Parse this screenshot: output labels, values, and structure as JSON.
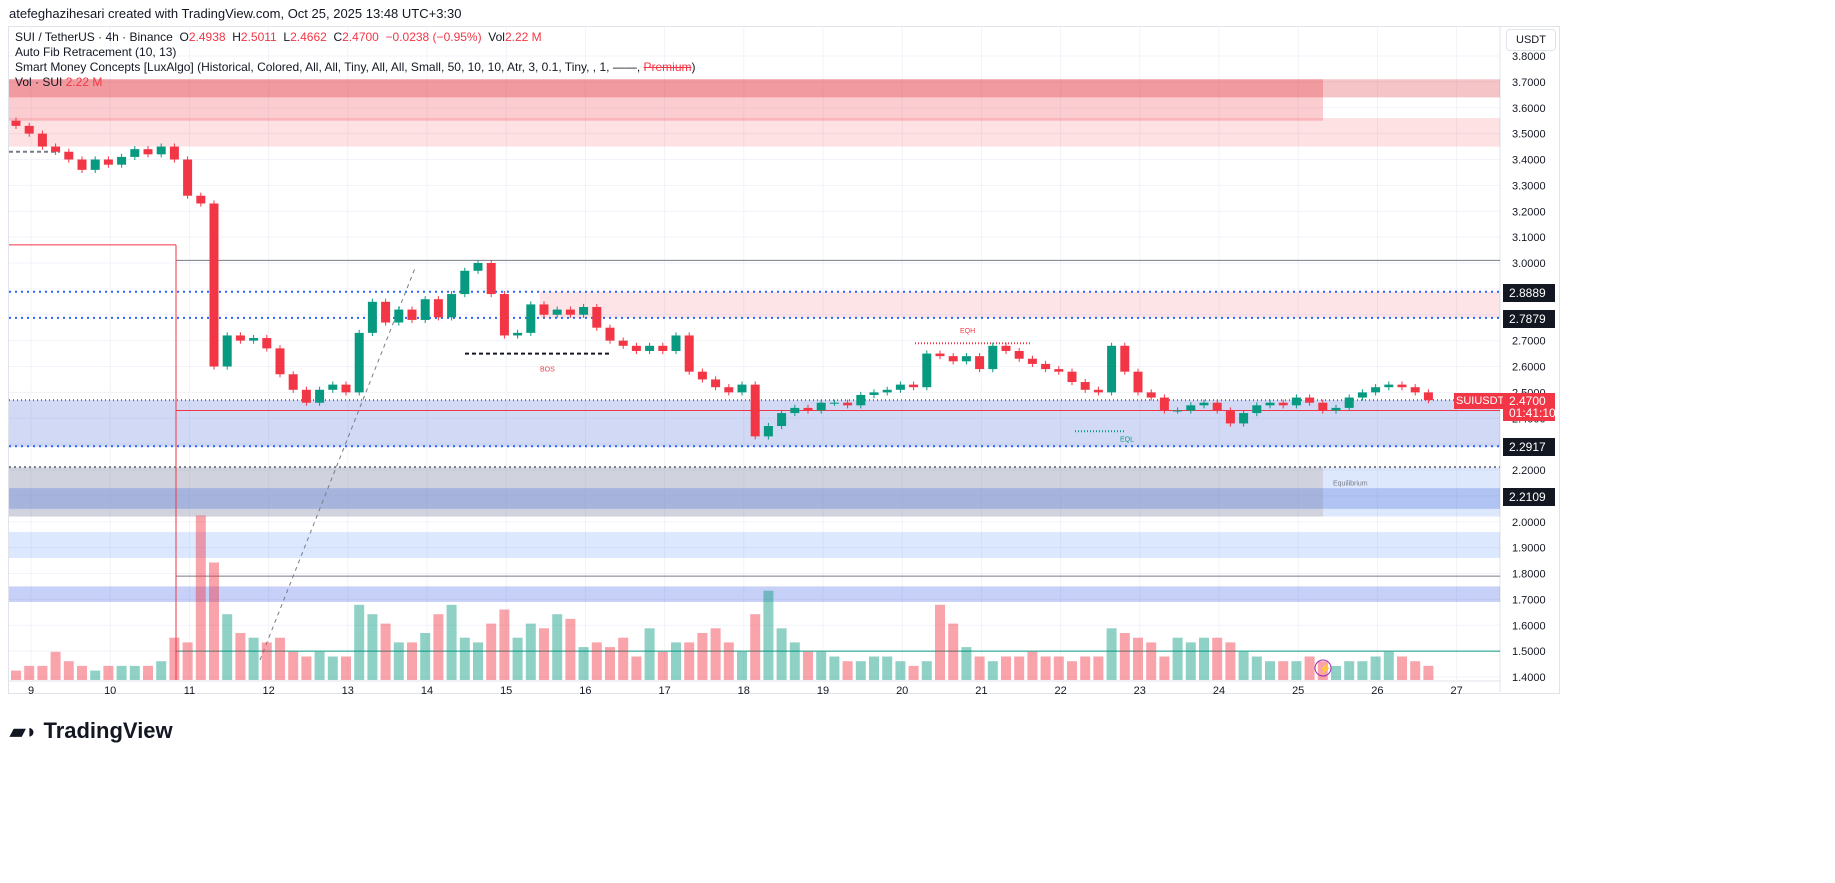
{
  "credit": "atefeghazihesari created with TradingView.com, Oct 25, 2025 13:48 UTC+3:30",
  "legend": {
    "symbol": "SUI / TetherUS · 4h · Binance",
    "o_label": "O",
    "o": "2.4938",
    "h_label": "H",
    "h": "2.5011",
    "l_label": "L",
    "l": "2.4662",
    "c_label": "C",
    "c": "2.4700",
    "change": "−0.0238 (−0.95%)",
    "vol_label": "Vol",
    "vol": "2.22 M",
    "fib": "Auto Fib Retracement (10, 13)",
    "smc": "Smart Money Concepts [LuxAlgo] (Historical, Colored, All, All, Tiny, All, All, Small, 50, 10, 10, Atr, 3, 0.1, Tiny, , 1, ——,",
    "smc_premium": "Premium",
    "smc_end": ")",
    "vol_line": "Vol · SUI",
    "vol_line_val": "2.22 M"
  },
  "currency_button": "USDT",
  "price_tags": {
    "p1": "2.8889",
    "p2": "2.7879",
    "p3": "2.2917",
    "p4": "2.2109",
    "symbol": "SUIUSDT",
    "last": "2.4700",
    "countdown": "01:41:10"
  },
  "annotations": {
    "eqh": "EQH",
    "bos": "BOS",
    "eql": "EQL",
    "equilibrium": "Equilibrium"
  },
  "logo": "TradingView",
  "colors": {
    "up": "#089981",
    "down": "#f23645"
  },
  "chart_data": {
    "type": "candlestick",
    "title": "SUI / TetherUS · 4h · Binance",
    "ylim": [
      1.4,
      3.8
    ],
    "yticks": [
      "3.8000",
      "3.7000",
      "3.6000",
      "3.5000",
      "3.4000",
      "3.3000",
      "3.2000",
      "3.1000",
      "3.0000",
      "2.9000",
      "2.8000",
      "2.7000",
      "2.6000",
      "2.5000",
      "2.4000",
      "2.3000",
      "2.2000",
      "2.1000",
      "2.0000",
      "1.9000",
      "1.8000",
      "1.7000",
      "1.6000",
      "1.5000",
      "1.4000"
    ],
    "xticks": [
      "9",
      "10",
      "11",
      "12",
      "13",
      "14",
      "15",
      "16",
      "17",
      "18",
      "19",
      "20",
      "21",
      "22",
      "23",
      "24",
      "25",
      "26",
      "27"
    ],
    "first_open": 3.55,
    "closes": [
      3.53,
      3.5,
      3.45,
      3.43,
      3.4,
      3.36,
      3.4,
      3.38,
      3.41,
      3.44,
      3.42,
      3.45,
      3.4,
      3.26,
      3.23,
      2.6,
      2.72,
      2.7,
      2.71,
      2.67,
      2.57,
      2.51,
      2.46,
      2.51,
      2.53,
      2.5,
      2.73,
      2.85,
      2.77,
      2.82,
      2.78,
      2.86,
      2.79,
      2.88,
      2.97,
      3.0,
      2.88,
      2.72,
      2.73,
      2.84,
      2.8,
      2.82,
      2.8,
      2.83,
      2.75,
      2.7,
      2.68,
      2.66,
      2.68,
      2.66,
      2.72,
      2.58,
      2.55,
      2.52,
      2.5,
      2.53,
      2.33,
      2.37,
      2.42,
      2.44,
      2.43,
      2.46,
      2.46,
      2.45,
      2.49,
      2.5,
      2.51,
      2.53,
      2.52,
      2.65,
      2.64,
      2.62,
      2.64,
      2.59,
      2.68,
      2.66,
      2.63,
      2.61,
      2.59,
      2.58,
      2.54,
      2.51,
      2.5,
      2.68,
      2.58,
      2.5,
      2.48,
      2.43,
      2.43,
      2.45,
      2.46,
      2.43,
      2.38,
      2.42,
      2.45,
      2.46,
      2.45,
      2.48,
      2.46,
      2.43,
      2.44,
      2.48,
      2.5,
      2.52,
      2.53,
      2.52,
      2.5,
      2.47
    ],
    "volumes": [
      2,
      3,
      3,
      6,
      4,
      3,
      2,
      3,
      3,
      3,
      3,
      4,
      9,
      8,
      35,
      25,
      14,
      10,
      9,
      8,
      9,
      6,
      5,
      6,
      5,
      5,
      16,
      14,
      12,
      8,
      8,
      10,
      14,
      16,
      9,
      8,
      12,
      15,
      9,
      12,
      11,
      14,
      13,
      7,
      8,
      7,
      9,
      5,
      11,
      6,
      8,
      8,
      10,
      11,
      8,
      6,
      14,
      19,
      11,
      8,
      6,
      6,
      5,
      4,
      4,
      5,
      5,
      4,
      3,
      4,
      16,
      12,
      7,
      5,
      4,
      5,
      5,
      6,
      5,
      5,
      4,
      5,
      5,
      11,
      10,
      9,
      8,
      5,
      9,
      8,
      9,
      9,
      8,
      6,
      5,
      4,
      4,
      4,
      5,
      4,
      3,
      4,
      4,
      5,
      6,
      5,
      4,
      3
    ]
  }
}
